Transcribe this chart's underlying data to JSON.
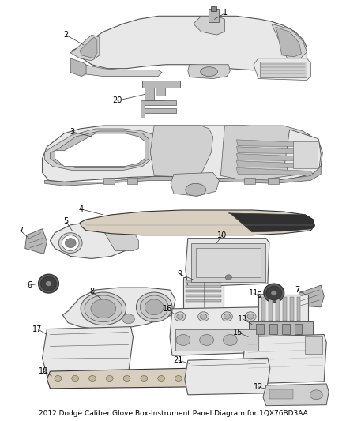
{
  "title": "2012 Dodge Caliber Glove Box-Instrument Panel Diagram for 1QX76BD3AA",
  "title_fontsize": 6.5,
  "background_color": "#ffffff",
  "fig_width": 4.38,
  "fig_height": 5.33,
  "dpi": 100,
  "label_fontsize": 7,
  "label_color": "#000000",
  "line_color": "#333333",
  "ec_main": "#555555",
  "fc_frame": "#e8e8e8",
  "fc_dark": "#b0b0b0",
  "fc_mid": "#d0d0d0",
  "fc_light": "#f0f0f0",
  "fc_black": "#222222"
}
